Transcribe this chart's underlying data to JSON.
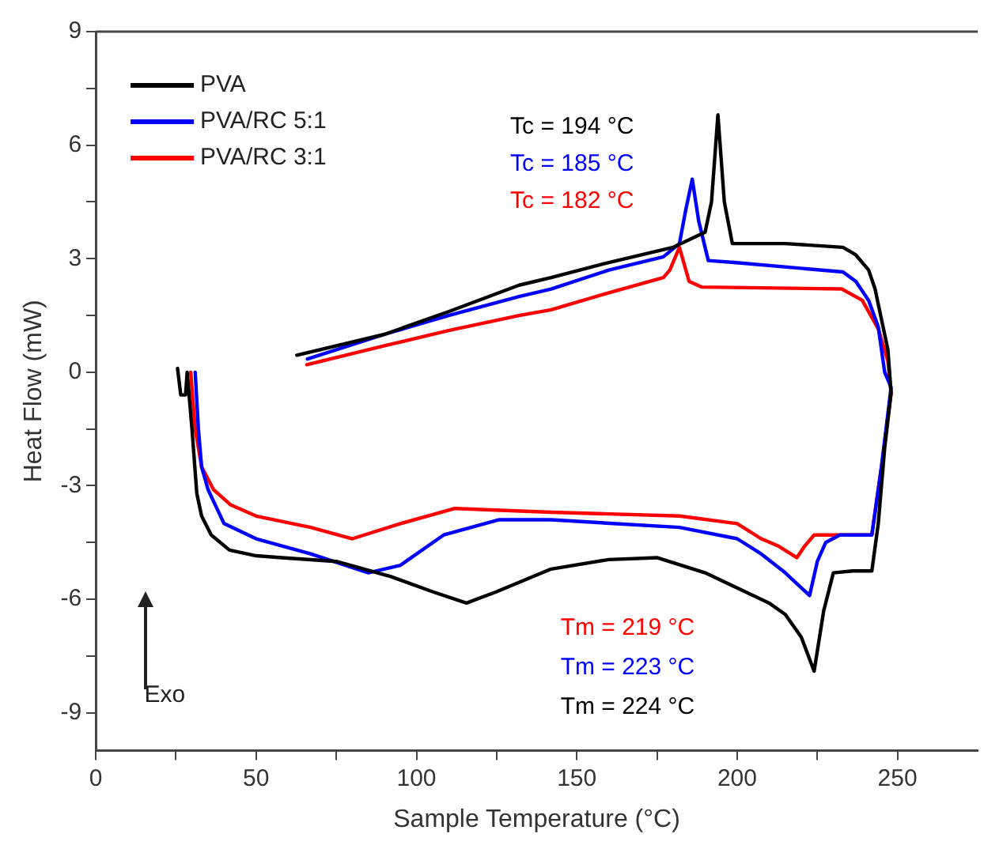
{
  "chart_data": {
    "type": "line",
    "xlabel": "Sample Temperature (°C)",
    "ylabel": "Heat Flow (mW)",
    "xlim": [
      0,
      275
    ],
    "ylim": [
      -10,
      9
    ],
    "xticks": [
      0,
      {
        "value": 25,
        "label": null
      },
      50,
      {
        "value": 75,
        "label": null
      },
      100,
      {
        "value": 125,
        "label": null
      },
      150,
      {
        "value": 175,
        "label": null
      },
      200,
      {
        "value": 225,
        "label": null
      },
      250
    ],
    "yticks": [
      -9,
      {
        "value": -7.5,
        "label": null
      },
      -6,
      {
        "value": -4.5,
        "label": null
      },
      -3,
      {
        "value": -1.5,
        "label": null
      },
      0,
      {
        "value": 1.5,
        "label": null
      },
      3,
      {
        "value": 4.5,
        "label": null
      },
      6,
      {
        "value": 7.5,
        "label": null
      },
      9
    ],
    "legend": "top left",
    "grid": false,
    "annotations": [
      "Tc = 194 °C",
      "Tc = 185 °C",
      "Tc = 182 °C",
      "Tm = 219 °C",
      "Tm = 223 °C",
      "Tm = 224 °C",
      "Exo"
    ],
    "series": [
      {
        "name": "PVA",
        "color": "#000000",
        "x": [
          25.5,
          26.5,
          28,
          28.5,
          30,
          31.5,
          33,
          36,
          41.7,
          50,
          58,
          75,
          92,
          105,
          115.6,
          125,
          142,
          160,
          175,
          190,
          200,
          210,
          215,
          220,
          224,
          227,
          230,
          236,
          242,
          244,
          246,
          248,
          247,
          245,
          243,
          241,
          237,
          233,
          215,
          200,
          198.5,
          196,
          194,
          192,
          190,
          187.5,
          180,
          160,
          142,
          132,
          110,
          90,
          62.7
        ],
        "values": [
          0.1,
          -0.6,
          -0.6,
          0,
          -1.5,
          -3.2,
          -3.8,
          -4.3,
          -4.7,
          -4.85,
          -4.9,
          -5.0,
          -5.4,
          -5.8,
          -6.1,
          -5.8,
          -5.2,
          -4.95,
          -4.9,
          -5.3,
          -5.7,
          -6.1,
          -6.4,
          -7.0,
          -7.9,
          -6.3,
          -5.3,
          -5.25,
          -5.25,
          -4,
          -2,
          -0.55,
          0.6,
          1.4,
          2.2,
          2.7,
          3.1,
          3.3,
          3.4,
          3.4,
          3.4,
          4.5,
          6.8,
          4.5,
          3.7,
          3.6,
          3.3,
          2.9,
          2.5,
          2.3,
          1.6,
          1.0,
          0.45
        ]
      },
      {
        "name": "PVA/RC 5:1",
        "color": "#0000ff",
        "x": [
          31,
          32,
          33,
          35,
          40,
          50,
          67,
          85,
          95,
          108.5,
          125.6,
          142,
          182,
          200,
          207.5,
          215,
          222.6,
          225,
          227.6,
          232,
          242,
          245,
          248,
          246,
          244,
          241,
          237,
          233,
          199,
          191,
          188,
          186,
          184,
          182,
          177,
          160,
          142,
          132,
          110,
          90,
          66
        ],
        "values": [
          0,
          -1.5,
          -2.5,
          -3.1,
          -4.0,
          -4.4,
          -4.8,
          -5.3,
          -5.1,
          -4.3,
          -3.9,
          -3.9,
          -4.1,
          -4.4,
          -4.8,
          -5.3,
          -5.9,
          -5.0,
          -4.5,
          -4.3,
          -4.3,
          -2.5,
          -0.4,
          0,
          1.2,
          1.9,
          2.4,
          2.65,
          2.9,
          2.95,
          4.0,
          5.1,
          4.3,
          3.4,
          3.05,
          2.7,
          2.2,
          2.0,
          1.5,
          1.0,
          0.35
        ]
      },
      {
        "name": "PVA/RC 3:1",
        "color": "#ff0000",
        "x": [
          29.6,
          31,
          33,
          36.7,
          42,
          50,
          67,
          80,
          95,
          112,
          142,
          182,
          200,
          207.5,
          213,
          218.6,
          221,
          224,
          230,
          242,
          245,
          248,
          247,
          244,
          239,
          232.6,
          189,
          185,
          182,
          179,
          177,
          160,
          142,
          132,
          110,
          90,
          65.8
        ],
        "values": [
          0,
          -1.5,
          -2.5,
          -3.1,
          -3.5,
          -3.8,
          -4.1,
          -4.4,
          -4.0,
          -3.6,
          -3.7,
          -3.8,
          -4.0,
          -4.4,
          -4.6,
          -4.9,
          -4.6,
          -4.3,
          -4.3,
          -4.3,
          -2.5,
          -0.55,
          0.3,
          1.15,
          1.9,
          2.2,
          2.25,
          2.4,
          3.3,
          2.7,
          2.5,
          2.1,
          1.65,
          1.5,
          1.1,
          0.7,
          0.2
        ]
      }
    ]
  }
}
